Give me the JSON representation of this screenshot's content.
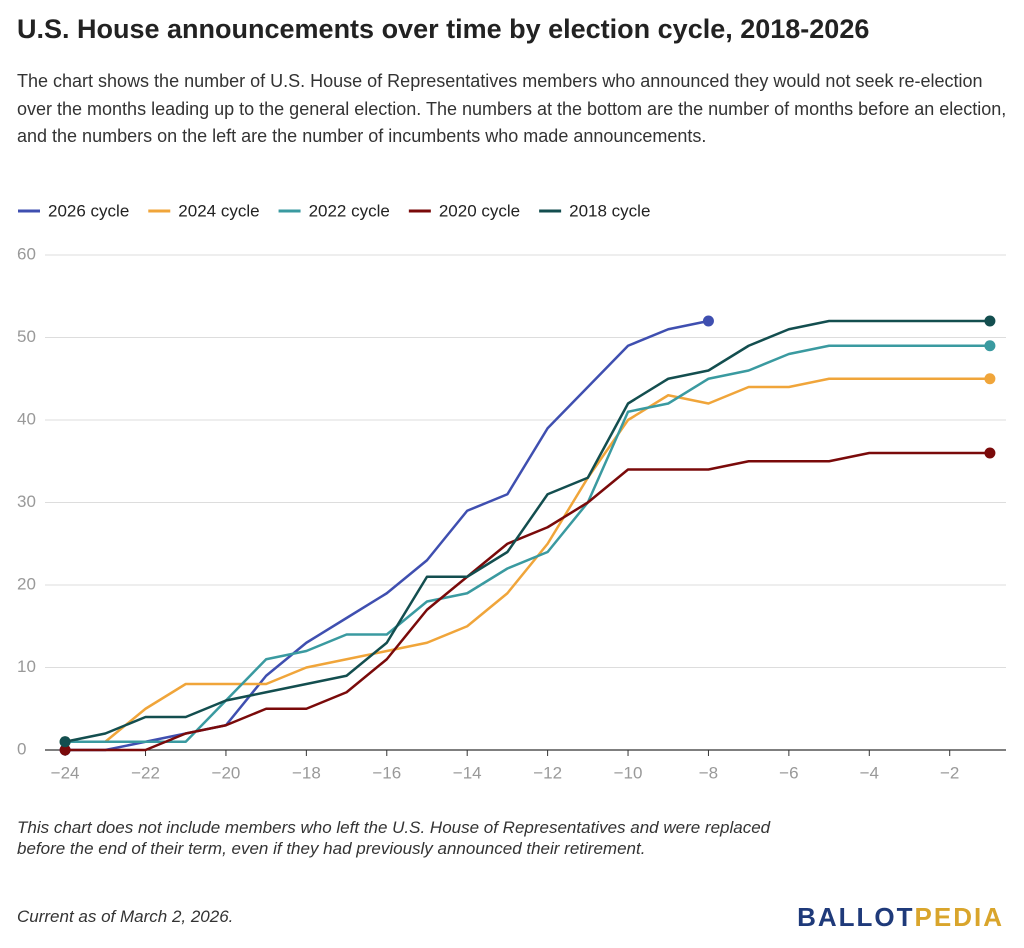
{
  "chart_data": {
    "type": "line",
    "title": "U.S. House announcements over time by election cycle, 2018-2026",
    "subtitle": "The chart shows the number of U.S. House of Representatives members who announced they would not seek re-election over the months leading up to the general election. The numbers at the bottom are the number of months before an election, and the numbers on the left are the number of incumbents who made announcements.",
    "x": [
      -24,
      -23,
      -22,
      -21,
      -20,
      -19,
      -18,
      -17,
      -16,
      -15,
      -14,
      -13,
      -12,
      -11,
      -10,
      -9,
      -8,
      -7,
      -6,
      -5,
      -4,
      -3,
      -2,
      -1
    ],
    "series": [
      {
        "name": "2026 cycle",
        "color": "#3f4fb0",
        "values": [
          0,
          0,
          1,
          2,
          3,
          9,
          13,
          16,
          19,
          23,
          29,
          31,
          39,
          44,
          49,
          51,
          52,
          null,
          null,
          null,
          null,
          null,
          null,
          null
        ]
      },
      {
        "name": "2024 cycle",
        "color": "#f0a53a",
        "values": [
          1,
          1,
          5,
          8,
          8,
          8,
          10,
          11,
          12,
          13,
          15,
          19,
          25,
          33,
          40,
          43,
          42,
          44,
          44,
          45,
          45,
          45,
          45,
          45
        ]
      },
      {
        "name": "2022 cycle",
        "color": "#3a9aa0",
        "values": [
          1,
          1,
          1,
          1,
          6,
          11,
          12,
          14,
          14,
          18,
          19,
          22,
          24,
          30,
          41,
          42,
          45,
          46,
          48,
          49,
          49,
          49,
          49,
          49
        ]
      },
      {
        "name": "2020 cycle",
        "color": "#7a0a0a",
        "values": [
          0,
          0,
          0,
          2,
          3,
          5,
          5,
          7,
          11,
          17,
          21,
          25,
          27,
          30,
          34,
          34,
          34,
          35,
          35,
          35,
          36,
          36,
          36,
          36
        ]
      },
      {
        "name": "2018 cycle",
        "color": "#134e4f",
        "values": [
          1,
          2,
          4,
          4,
          6,
          7,
          8,
          9,
          13,
          21,
          21,
          24,
          31,
          33,
          42,
          45,
          46,
          49,
          51,
          52,
          52,
          52,
          52,
          52
        ]
      }
    ],
    "xlim": [
      -24.5,
      -0.6
    ],
    "xticks": [
      {
        "value": -24,
        "label": "−24"
      },
      {
        "value": -22,
        "label": "−22"
      },
      {
        "value": -20,
        "label": "−20"
      },
      {
        "value": -18,
        "label": "−18"
      },
      {
        "value": -16,
        "label": "−16"
      },
      {
        "value": -14,
        "label": "−14"
      },
      {
        "value": -12,
        "label": "−12"
      },
      {
        "value": -10,
        "label": "−10"
      },
      {
        "value": -8,
        "label": "−8"
      },
      {
        "value": -6,
        "label": "−6"
      },
      {
        "value": -4,
        "label": "−4"
      },
      {
        "value": -2,
        "label": "−2"
      }
    ],
    "ylim": [
      0,
      60
    ],
    "yticks": [
      0,
      10,
      20,
      30,
      40,
      50,
      60
    ],
    "grid": true,
    "legend": "top-left",
    "note": "This chart does not include members who left the U.S. House of Representatives and were replaced before the end of their term, even if they had previously announced their retirement.",
    "source": "Current as of March 2, 2026.",
    "logo": [
      "BALLOT",
      "PEDIA"
    ]
  }
}
